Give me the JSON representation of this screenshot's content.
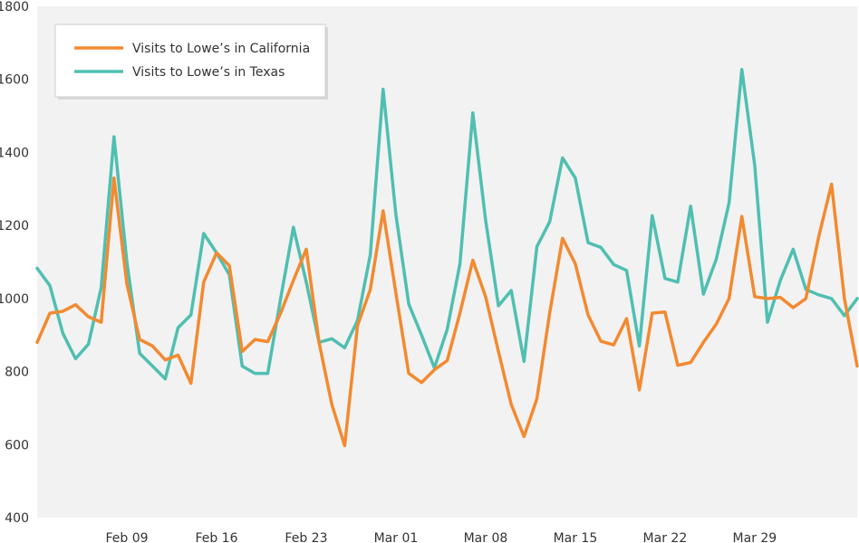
{
  "chart_data": {
    "type": "line",
    "title": "",
    "xlabel": "",
    "ylabel": "",
    "ylim": [
      400,
      1800
    ],
    "yticks": [
      400,
      600,
      800,
      1000,
      1200,
      1400,
      1600,
      1800
    ],
    "grid": false,
    "background": "#f2f2f2",
    "legend_position": "top-left",
    "x_tick_labels": [
      "Feb 09",
      "Feb 16",
      "Feb 23",
      "Mar 01",
      "Mar 08",
      "Mar 15",
      "Mar 22",
      "Mar 29"
    ],
    "x_tick_dates": [
      "2020-02-09",
      "2020-02-16",
      "2020-02-23",
      "2020-03-01",
      "2020-03-08",
      "2020-03-15",
      "2020-03-22",
      "2020-03-29"
    ],
    "x": [
      "2020-02-02",
      "2020-02-03",
      "2020-02-04",
      "2020-02-05",
      "2020-02-06",
      "2020-02-07",
      "2020-02-08",
      "2020-02-09",
      "2020-02-10",
      "2020-02-11",
      "2020-02-12",
      "2020-02-13",
      "2020-02-14",
      "2020-02-15",
      "2020-02-16",
      "2020-02-17",
      "2020-02-18",
      "2020-02-19",
      "2020-02-20",
      "2020-02-21",
      "2020-02-22",
      "2020-02-23",
      "2020-02-24",
      "2020-02-25",
      "2020-02-26",
      "2020-02-27",
      "2020-02-28",
      "2020-02-29",
      "2020-03-01",
      "2020-03-02",
      "2020-03-03",
      "2020-03-04",
      "2020-03-05",
      "2020-03-06",
      "2020-03-07",
      "2020-03-08",
      "2020-03-09",
      "2020-03-10",
      "2020-03-11",
      "2020-03-12",
      "2020-03-13",
      "2020-03-14",
      "2020-03-15",
      "2020-03-16",
      "2020-03-17",
      "2020-03-18",
      "2020-03-19",
      "2020-03-20",
      "2020-03-21",
      "2020-03-22",
      "2020-03-23",
      "2020-03-24",
      "2020-03-25",
      "2020-03-26",
      "2020-03-27",
      "2020-03-28",
      "2020-03-29",
      "2020-03-30",
      "2020-03-31",
      "2020-04-01",
      "2020-04-02",
      "2020-04-03",
      "2020-04-04",
      "2020-04-05",
      "2020-04-06"
    ],
    "series": [
      {
        "name": "Visits to Lowe’s in California",
        "color": "#f28a30",
        "values": [
          880,
          960,
          965,
          983,
          950,
          935,
          1330,
          1040,
          888,
          870,
          832,
          845,
          768,
          1045,
          1125,
          1090,
          855,
          888,
          882,
          960,
          1050,
          1135,
          880,
          710,
          597,
          925,
          1025,
          1240,
          1015,
          795,
          770,
          805,
          830,
          960,
          1105,
          1005,
          855,
          710,
          622,
          725,
          960,
          1165,
          1095,
          955,
          883,
          873,
          945,
          750,
          960,
          963,
          817,
          825,
          880,
          930,
          1000,
          1225,
          1005,
          1000,
          1003,
          975,
          1000,
          1170,
          1313,
          1000,
          815
        ]
      },
      {
        "name": "Visits to Lowe’s in Texas",
        "color": "#4fbfb1",
        "values": [
          1083,
          1035,
          905,
          835,
          875,
          1030,
          1443,
          1100,
          850,
          815,
          780,
          920,
          955,
          1178,
          1125,
          1065,
          815,
          795,
          795,
          1000,
          1195,
          1045,
          880,
          890,
          865,
          940,
          1120,
          1573,
          1230,
          985,
          900,
          810,
          915,
          1095,
          1508,
          1215,
          980,
          1022,
          828,
          1142,
          1210,
          1385,
          1330,
          1153,
          1140,
          1093,
          1077,
          870,
          1227,
          1055,
          1045,
          1253,
          1012,
          1108,
          1262,
          1627,
          1365,
          935,
          1050,
          1135,
          1025,
          1010,
          1000,
          953,
          1000
        ]
      }
    ]
  }
}
